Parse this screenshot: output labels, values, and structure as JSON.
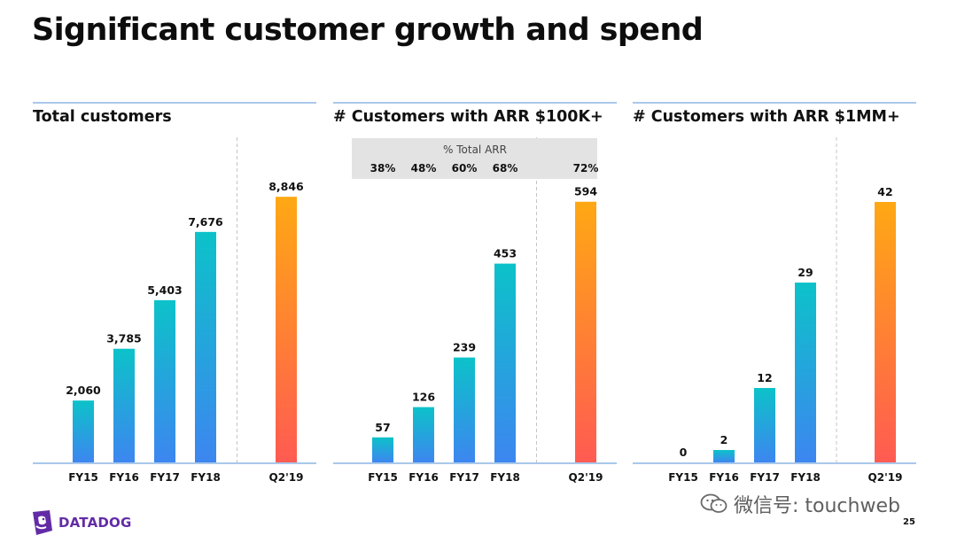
{
  "slide": {
    "title": "Significant customer growth and spend",
    "page_number": "25"
  },
  "logo": {
    "name": "DATADOG"
  },
  "watermark": {
    "text": "微信号: touchweb"
  },
  "colors": {
    "historical_gradient": [
      "#0cc2c9",
      "#3d86f0"
    ],
    "current_gradient": [
      "#ffa814",
      "#ff5b52"
    ],
    "axis": "#a9c8ea",
    "header_rule": "#a9c8ea",
    "divider": "#c4c4c4",
    "arr_box": "#e3e3e3",
    "brand": "#632ca6"
  },
  "chart_data": [
    {
      "type": "bar",
      "title": "Total customers",
      "categories": [
        "FY15",
        "FY16",
        "FY17",
        "FY18",
        "Q2'19"
      ],
      "values": [
        2060,
        3785,
        5403,
        7676,
        8846
      ],
      "value_labels": [
        "2,060",
        "3,785",
        "5,403",
        "7,676",
        "8,846"
      ],
      "highlight": "Q2'19",
      "ylim": [
        0,
        9500
      ],
      "grid": false,
      "legend": "none"
    },
    {
      "type": "bar",
      "title": "# Customers with ARR $100K+",
      "categories": [
        "FY15",
        "FY16",
        "FY17",
        "FY18",
        "Q2'19"
      ],
      "values": [
        57,
        126,
        239,
        453,
        594
      ],
      "value_labels": [
        "57",
        "126",
        "239",
        "453",
        "594"
      ],
      "highlight": "Q2'19",
      "ylim": [
        0,
        650
      ],
      "grid": false,
      "legend": "none",
      "annotation": {
        "title": "% Total ARR",
        "values": [
          "38%",
          "48%",
          "60%",
          "68%",
          "72%"
        ]
      }
    },
    {
      "type": "bar",
      "title": "# Customers with ARR $1MM+",
      "categories": [
        "FY15",
        "FY16",
        "FY17",
        "FY18",
        "Q2'19"
      ],
      "values": [
        0,
        2,
        12,
        29,
        42
      ],
      "value_labels": [
        "0",
        "2",
        "12",
        "29",
        "42"
      ],
      "highlight": "Q2'19",
      "ylim": [
        0,
        46
      ],
      "grid": false,
      "legend": "none"
    }
  ]
}
